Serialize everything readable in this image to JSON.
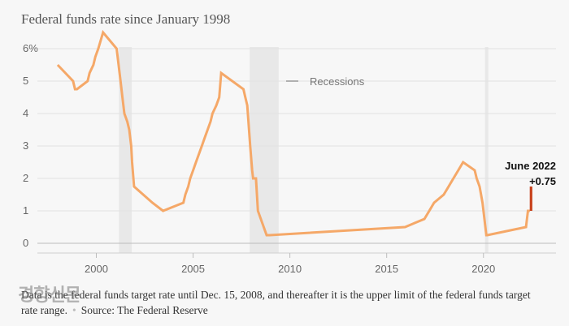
{
  "chart_data": {
    "type": "line",
    "title": "Federal funds rate since January 1998",
    "xlabel": "",
    "ylabel": "",
    "xlim": [
      1996.2,
      2024
    ],
    "ylim": [
      0,
      6.5
    ],
    "y_ticks": [
      {
        "value": 0,
        "label": "0"
      },
      {
        "value": 1,
        "label": "1"
      },
      {
        "value": 2,
        "label": "2"
      },
      {
        "value": 3,
        "label": "3"
      },
      {
        "value": 4,
        "label": "4"
      },
      {
        "value": 5,
        "label": "5"
      },
      {
        "value": 6,
        "label": "6%"
      }
    ],
    "x_ticks": [
      {
        "value": 2000,
        "label": "2000"
      },
      {
        "value": 2005,
        "label": "2005"
      },
      {
        "value": 2010,
        "label": "2010"
      },
      {
        "value": 2015,
        "label": "2015"
      },
      {
        "value": 2020,
        "label": "2020"
      }
    ],
    "grid": "horizontal",
    "legend": {
      "label": "Recessions",
      "placement": "top-center"
    },
    "recessions": [
      {
        "start": 2001.17,
        "end": 2001.83
      },
      {
        "start": 2007.92,
        "end": 2009.42
      },
      {
        "start": 2020.08,
        "end": 2020.25
      }
    ],
    "series": [
      {
        "color": "#f5a868",
        "x": [
          1998.0,
          1998.8,
          1998.9,
          1999.0,
          1999.55,
          1999.65,
          1999.85,
          1999.95,
          2000.1,
          2000.35,
          2001.05,
          2001.15,
          2001.25,
          2001.35,
          2001.45,
          2001.6,
          2001.7,
          2001.8,
          2001.85,
          2001.95,
          2002.9,
          2003.45,
          2004.5,
          2004.6,
          2004.75,
          2004.85,
          2005.0,
          2005.15,
          2005.3,
          2005.45,
          2005.6,
          2005.75,
          2005.9,
          2006.0,
          2006.2,
          2006.35,
          2006.45,
          2007.6,
          2007.7,
          2007.8,
          2007.95,
          2008.05,
          2008.1,
          2008.25,
          2008.35,
          2008.8,
          2008.95,
          2015.95,
          2016.95,
          2017.2,
          2017.45,
          2017.95,
          2018.2,
          2018.45,
          2018.7,
          2018.95,
          2019.55,
          2019.65,
          2019.8,
          2019.95,
          2020.15,
          2020.2,
          2022.2,
          2022.3,
          2022.4
        ],
        "y": [
          5.5,
          5.0,
          4.75,
          4.75,
          5.0,
          5.25,
          5.5,
          5.75,
          6.0,
          6.5,
          6.0,
          5.5,
          5.0,
          4.5,
          4.0,
          3.75,
          3.5,
          3.0,
          2.5,
          1.75,
          1.25,
          1.0,
          1.25,
          1.5,
          1.75,
          2.0,
          2.25,
          2.5,
          2.75,
          3.0,
          3.25,
          3.5,
          3.75,
          4.0,
          4.25,
          4.5,
          5.25,
          4.75,
          4.5,
          4.25,
          3.0,
          2.25,
          2.0,
          2.0,
          1.0,
          0.25,
          0.25,
          0.5,
          0.75,
          1.0,
          1.25,
          1.5,
          1.75,
          2.0,
          2.25,
          2.5,
          2.25,
          2.0,
          1.75,
          1.25,
          0.25,
          0.25,
          0.5,
          1.0,
          1.0
        ]
      },
      {
        "color": "#c8421c",
        "x": [
          2022.46,
          2022.46
        ],
        "y": [
          1.0,
          1.75
        ]
      }
    ],
    "annotation": {
      "line1": "June 2022",
      "line2": "+0.75",
      "x": 2022.46,
      "y": 1.75
    }
  },
  "footnote": {
    "text": "Data is the federal funds target rate until Dec. 15, 2008, and thereafter it is the upper limit of the federal funds target rate range.",
    "separator": "•",
    "source": "Source: The Federal Reserve"
  },
  "watermark": "경향신문"
}
